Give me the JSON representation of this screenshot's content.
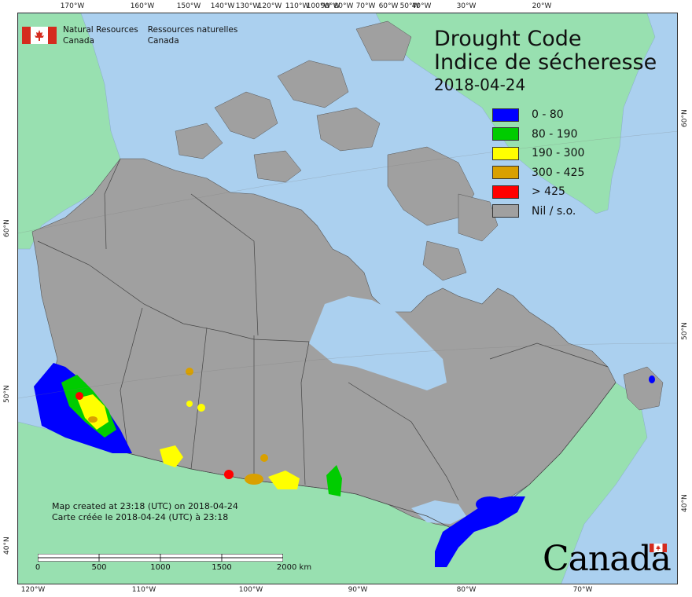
{
  "title": {
    "en": "Drought Code",
    "fr": "Indice de sécheresse",
    "date": "2018-04-24"
  },
  "agency": {
    "en_line1": "Natural Resources",
    "en_line2": "Canada",
    "fr_line1": "Ressources naturelles",
    "fr_line2": "Canada"
  },
  "legend": [
    {
      "label": "0 - 80",
      "color": "#0000ff"
    },
    {
      "label": "80 - 190",
      "color": "#00cc00"
    },
    {
      "label": "190 - 300",
      "color": "#ffff00"
    },
    {
      "label": "300 - 425",
      "color": "#d9a000"
    },
    {
      "label": "> 425",
      "color": "#ff0000"
    },
    {
      "label": "Nil / s.o.",
      "color": "#a0a0a0"
    }
  ],
  "axes": {
    "top": [
      "170°W",
      "160°W",
      "150°W",
      "140°W",
      "130°W",
      "120°W",
      "110°W",
      "100°W",
      "90°W",
      "80°W",
      "70°W",
      "60°W",
      "50°W",
      "40°W",
      "30°W",
      "20°W"
    ],
    "bottom": [
      "120°W",
      "110°W",
      "100°W",
      "90°W",
      "80°W",
      "70°W"
    ],
    "left": [
      "60°N",
      "50°N",
      "40°N"
    ],
    "right": [
      "60°N",
      "50°N",
      "40°N"
    ]
  },
  "note": {
    "en": "Map created at 23:18 (UTC) on 2018-04-24",
    "fr": "Carte créée le 2018-04-24 (UTC) à 23:18"
  },
  "scale": {
    "labels": [
      "0",
      "500",
      "1000",
      "1500",
      "2000 km"
    ]
  },
  "wordmark": "Canada",
  "colors": {
    "ocean": "#abd0ef",
    "land_other": "#98e0b0",
    "canada": "#a0a0a0",
    "border": "#333333"
  }
}
